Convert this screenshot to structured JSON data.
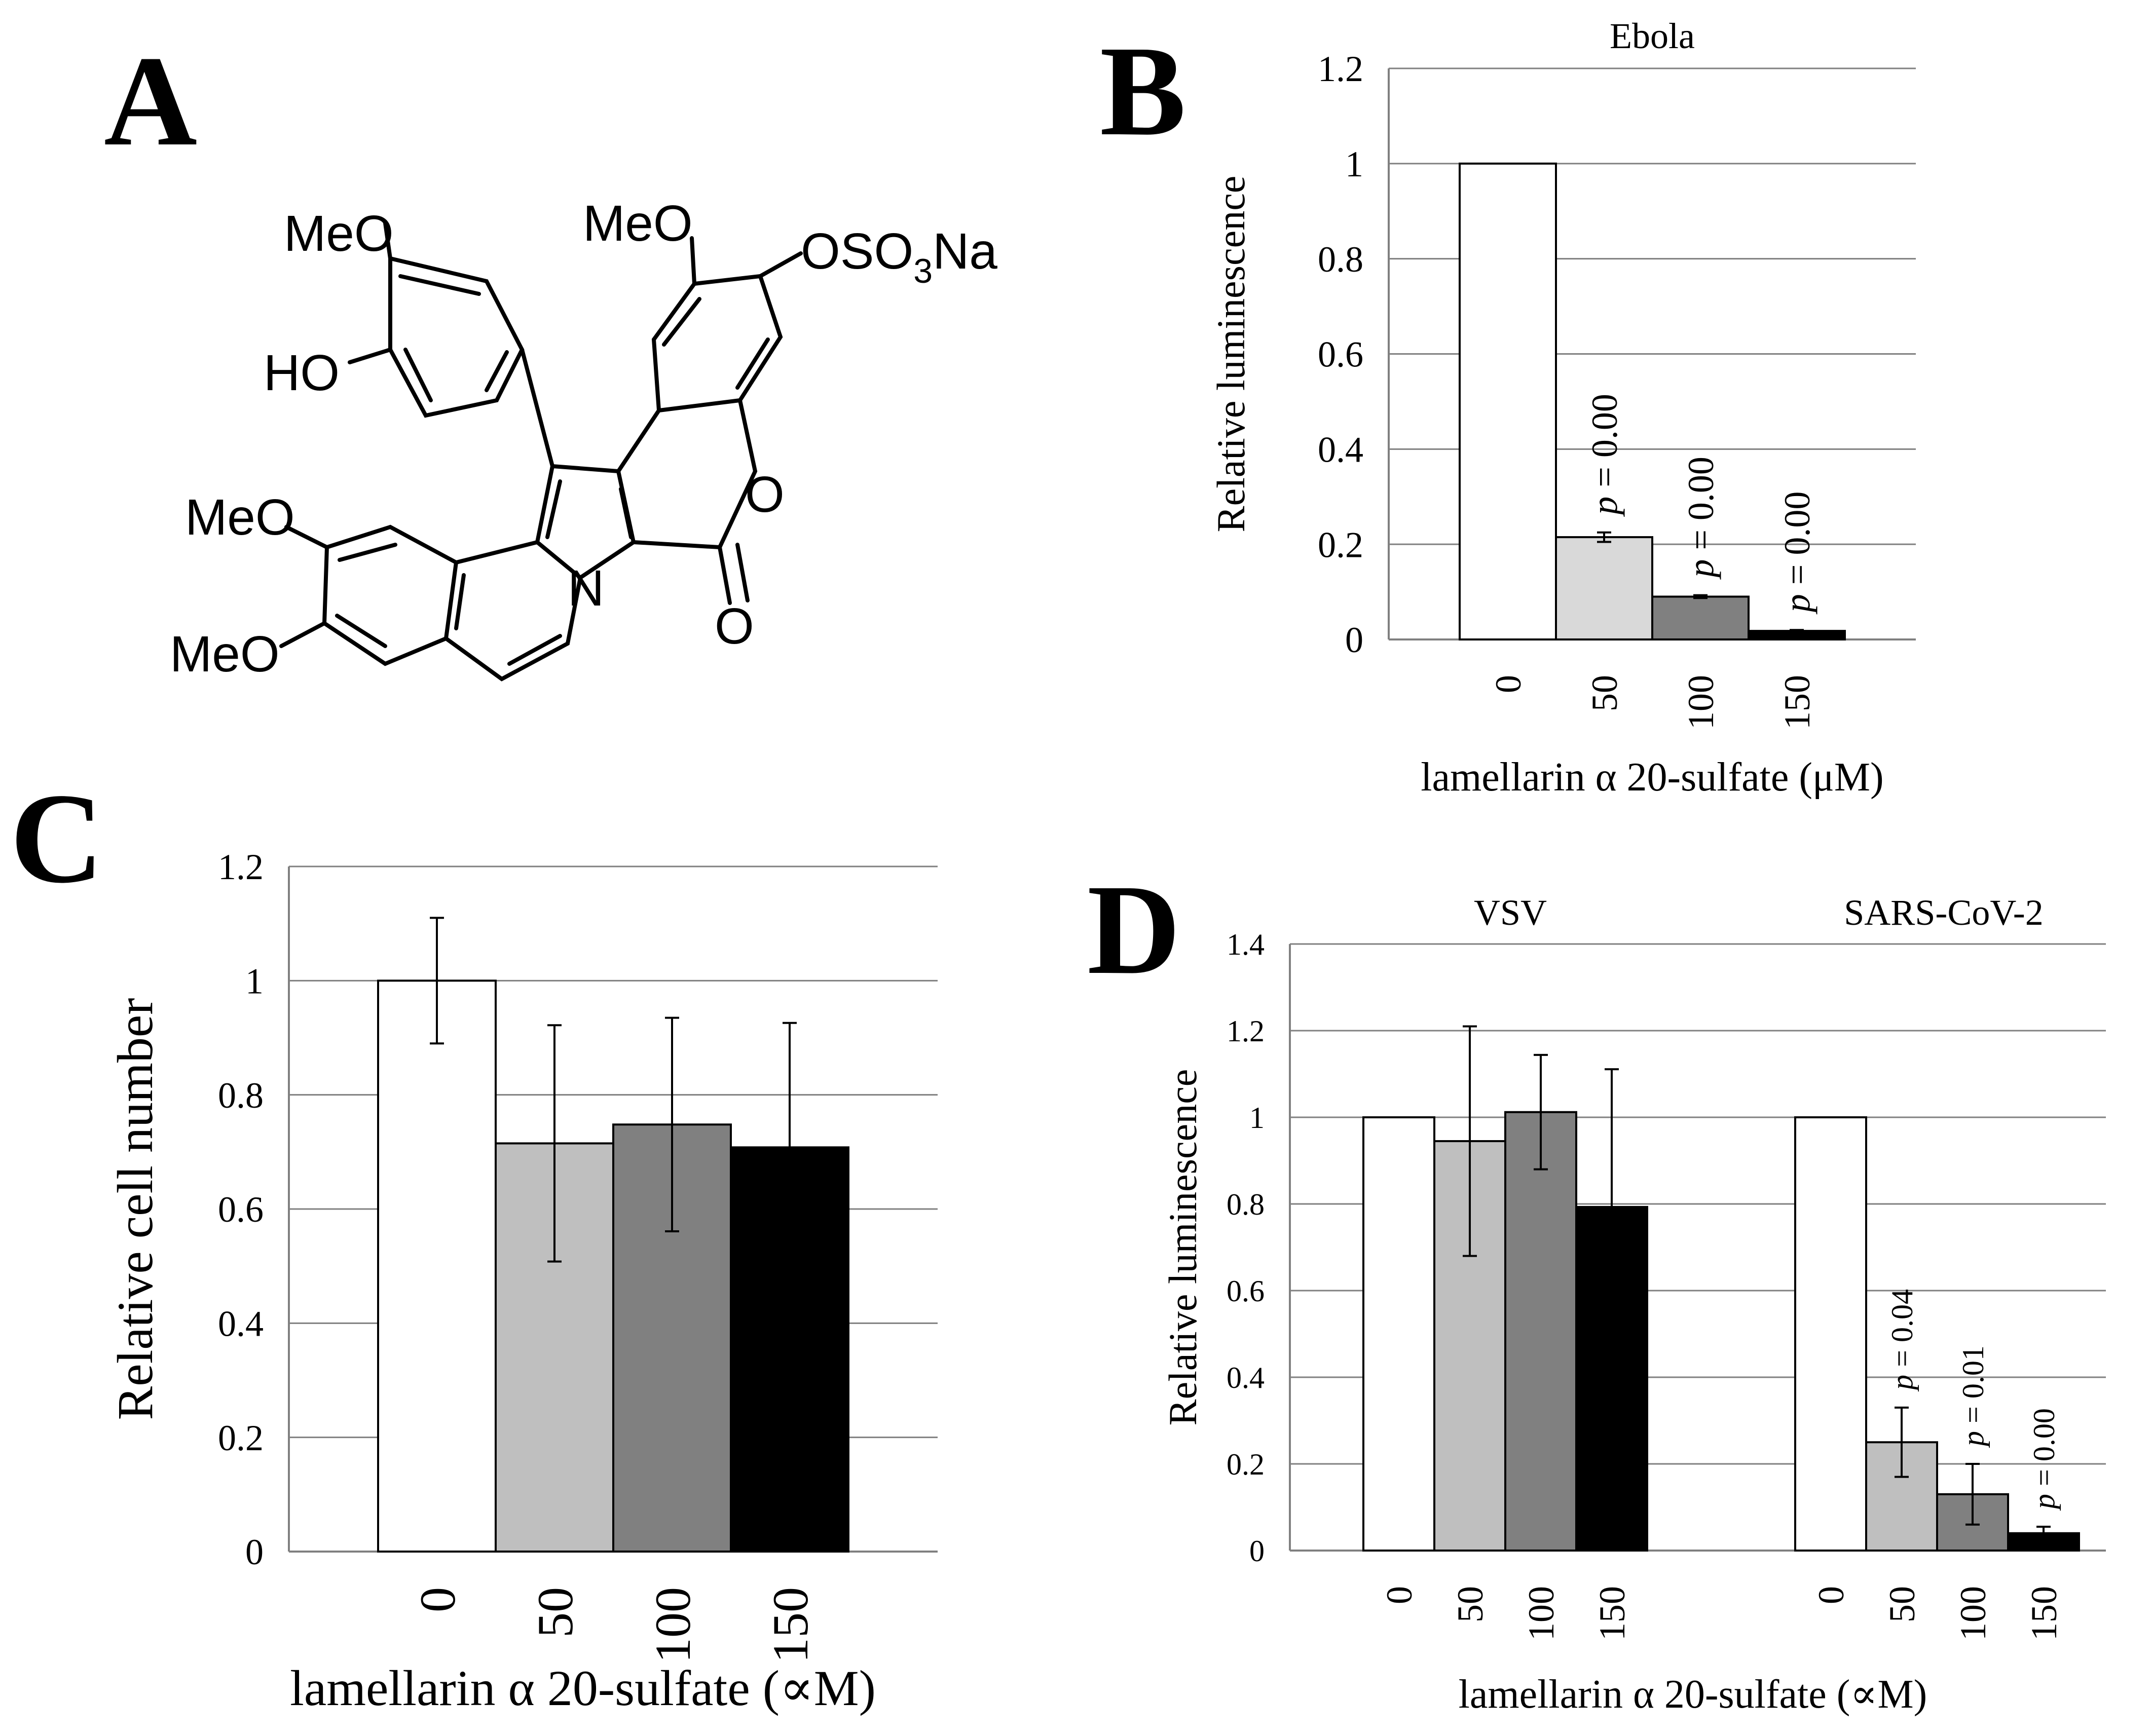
{
  "panels": {
    "A": {
      "letter": "A"
    },
    "B": {
      "letter": "B"
    },
    "C": {
      "letter": "C"
    },
    "D": {
      "letter": "D"
    }
  },
  "structure": {
    "labels": {
      "meo_top_left": "MeO",
      "ho": "HO",
      "meo_top_right": "MeO",
      "oso3na_prefix": "OSO",
      "oso3na_sub": "3",
      "oso3na_suffix": "Na",
      "meo_mid_left": "MeO",
      "meo_bottom_left": "MeO",
      "n": "N",
      "o_ring": "O",
      "o_carbonyl": "O"
    }
  },
  "colors": {
    "bar_0": "#ffffff",
    "bar_50_B": "#d9d9d9",
    "bar_50": "#bfbfbf",
    "bar_100": "#808080",
    "bar_150": "#000000",
    "grid": "#808080",
    "axis": "#808080"
  },
  "chart_data": [
    {
      "panel": "B",
      "type": "bar",
      "title": "Ebola",
      "ylabel": "Relative luminescence",
      "xlabel": "lamellarin α 20-sulfate (μM)",
      "categories": [
        "0",
        "50",
        "100",
        "150"
      ],
      "values": [
        1.0,
        0.215,
        0.09,
        0.018
      ],
      "errors": [
        0,
        0.01,
        0.003,
        0.002
      ],
      "annotations": [
        "",
        "p = 0.00",
        "p = 0.00",
        "p = 0.00"
      ],
      "ylim": [
        0,
        1.2
      ],
      "yticks": [
        "0",
        "0.2",
        "0.4",
        "0.6",
        "0.8",
        "1",
        "1.2"
      ],
      "grid": true
    },
    {
      "panel": "C",
      "type": "bar",
      "title": "",
      "ylabel": "Relative cell number",
      "xlabel": "lamellarin α 20-sulfate (∝M)",
      "categories": [
        "0",
        "50",
        "100",
        "150"
      ],
      "values": [
        1.0,
        0.715,
        0.748,
        0.708
      ],
      "errors": [
        0.11,
        0.207,
        0.187,
        0.218
      ],
      "annotations": [
        "",
        "",
        "",
        ""
      ],
      "ylim": [
        0,
        1.2
      ],
      "yticks": [
        "0",
        "0.2",
        "0.4",
        "0.6",
        "0.8",
        "1",
        "1.2"
      ],
      "grid": true
    },
    {
      "panel": "D",
      "type": "bar",
      "ylabel": "Relative luminescence",
      "xlabel": "lamellarin α 20-sulfate (∝M)",
      "ylim": [
        0,
        1.4
      ],
      "yticks": [
        "0",
        "0.2",
        "0.4",
        "0.6",
        "0.8",
        "1",
        "1.2",
        "1.4"
      ],
      "grid": true,
      "groups": [
        {
          "name": "VSV",
          "categories": [
            "0",
            "50",
            "100",
            "150"
          ],
          "values": [
            1.0,
            0.945,
            1.012,
            0.793
          ],
          "errors": [
            0,
            0.265,
            0.132,
            0.318
          ],
          "annotations": [
            "",
            "",
            "",
            ""
          ]
        },
        {
          "name": "SARS-CoV-2",
          "categories": [
            "0",
            "50",
            "100",
            "150"
          ],
          "values": [
            1.0,
            0.25,
            0.13,
            0.04
          ],
          "errors": [
            0,
            0.08,
            0.07,
            0.015
          ],
          "annotations": [
            "",
            "p = 0.04",
            "p = 0.01",
            "p = 0.00"
          ]
        }
      ]
    }
  ]
}
